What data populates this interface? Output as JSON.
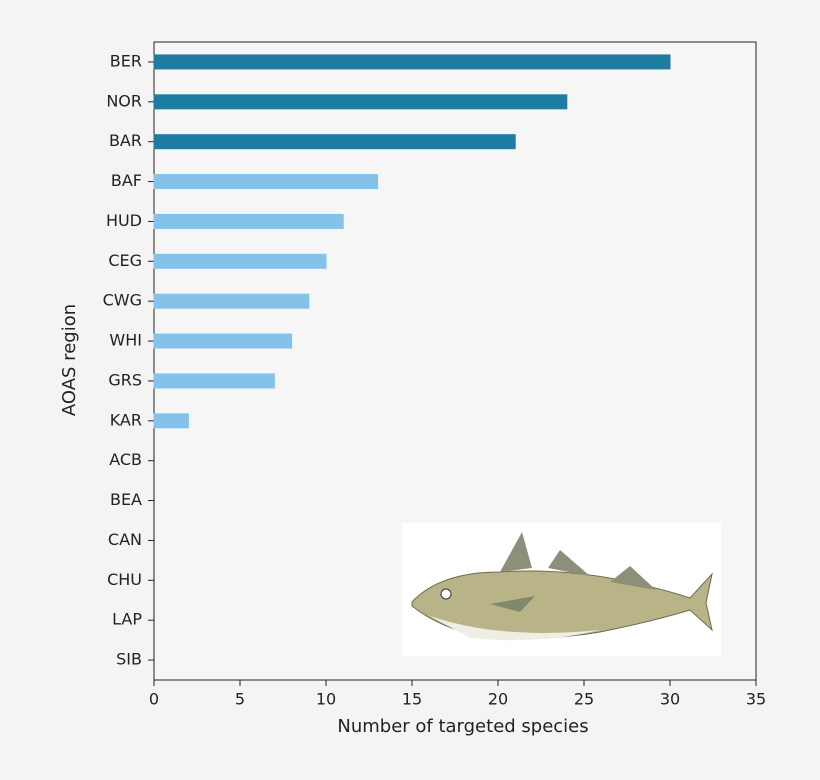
{
  "chart_data": {
    "type": "barh",
    "categories": [
      "BER",
      "NOR",
      "BAR",
      "BAF",
      "HUD",
      "CEG",
      "CWG",
      "WHI",
      "GRS",
      "KAR",
      "ACB",
      "BEA",
      "CAN",
      "CHU",
      "LAP",
      "SIB"
    ],
    "values": [
      30,
      24,
      21,
      13,
      11,
      10,
      9,
      8,
      7,
      2,
      0,
      0,
      0,
      0,
      0,
      0
    ],
    "colors": [
      "#1e7ca3",
      "#1e7ca3",
      "#1e7ca3",
      "#85c2ea",
      "#85c2ea",
      "#85c2ea",
      "#85c2ea",
      "#85c2ea",
      "#85c2ea",
      "#85c2ea",
      "#1e7ca3",
      "#1e7ca3",
      "#1e7ca3",
      "#1e7ca3",
      "#1e7ca3",
      "#1e7ca3"
    ],
    "xlabel": "Number of targeted species",
    "ylabel": "AOAS region",
    "xlim": [
      0,
      35
    ],
    "xticks": [
      0,
      5,
      10,
      15,
      20,
      25,
      30,
      35
    ]
  }
}
